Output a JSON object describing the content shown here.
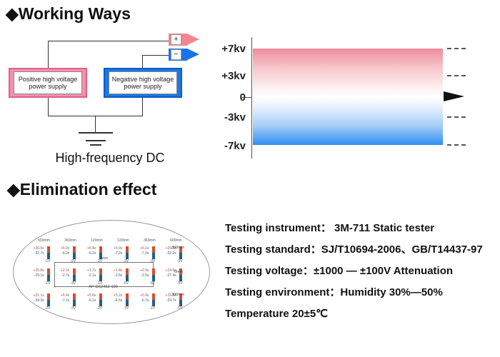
{
  "working_ways": {
    "title": "◆Working Ways",
    "positive_supply": "Positive high voltage power supply",
    "negative_supply": "Negative high voltage power supply",
    "plus_symbol": "+",
    "minus_symbol": "−",
    "caption": "High-frequency DC",
    "colors": {
      "positive_fill": "#f490ae",
      "positive_border": "#e16088",
      "negative_fill": "#1b78e8",
      "negative_border": "#0b5cc8",
      "plus_arrow": "#f2868f",
      "minus_arrow": "#1a73e8"
    }
  },
  "voltage_chart": {
    "labels": [
      "+7kv",
      "+3kv",
      "0",
      "-3kv",
      "-7kv"
    ],
    "gradient_top_color": "#ee8c9b",
    "gradient_bottom_color": "#2f8ef2"
  },
  "elimination": {
    "title": "◆Elimination effect",
    "model": "AP-DC2452-100",
    "center_label": "0mm",
    "grid": {
      "columns": [
        "600mm",
        "360mm",
        "120mm",
        "120mm",
        "360mm",
        "600mm"
      ],
      "rows": [
        {
          "label": "300mm",
          "cells": [
            {
              "p": "+30.5s",
              "n": "-32.7s",
              "v": "-1V"
            },
            {
              "p": "+5.9s",
              "n": "-6.2s",
              "v": "-2V"
            },
            {
              "p": "+6.4s",
              "n": "-6.2s",
              "v": "-2V"
            },
            {
              "p": "+5.9s",
              "n": "-7.2s",
              "v": "-3V"
            },
            {
              "p": "+6.1s",
              "n": "-7.0s",
              "v": "-3V"
            },
            {
              "p": "+29.3s",
              "n": "-32.2s",
              "v": "-3V"
            }
          ]
        },
        {
          "label": "0mm",
          "cells": [
            {
              "p": "+25.8s",
              "n": "-29.1s",
              "v": "-1V"
            },
            {
              "p": "+2.2s",
              "n": "-2.7s",
              "v": "-3V"
            },
            {
              "p": "+1.7s",
              "n": "-2.1s",
              "v": "-1V"
            },
            {
              "p": "+1.8s",
              "n": "-2.6s",
              "v": "-6V"
            },
            {
              "p": "+2.0s",
              "n": "-2.5s",
              "v": "-5V"
            },
            {
              "p": "+24.6s",
              "n": "-27.4s",
              "v": "-3V"
            }
          ]
        },
        {
          "label": "300mm",
          "cells": [
            {
              "p": "+31.1s",
              "n": "-34.3s",
              "v": "-2V"
            },
            {
              "p": "+6.4s",
              "n": "-7.1s",
              "v": "-2V"
            },
            {
              "p": "+5.6s",
              "n": "-6.1s",
              "v": "-2V"
            },
            {
              "p": "+5.2s",
              "n": "-6.5s",
              "v": "-1V"
            },
            {
              "p": "+5.9s",
              "n": "-6.7s",
              "v": "-1V"
            },
            {
              "p": "+31.1s",
              "n": "-33.7s",
              "v": "-1V"
            }
          ]
        }
      ]
    },
    "notes": [
      "Testing instrument：  3M-711 Static tester",
      "Testing standard：SJ/T10694-2006、GB/T14437-97",
      "Testing voltage：±1000 — ±100V Attenuation",
      "Testing environment：Humidity 30%—50%",
      "Temperature 20±5℃"
    ]
  }
}
